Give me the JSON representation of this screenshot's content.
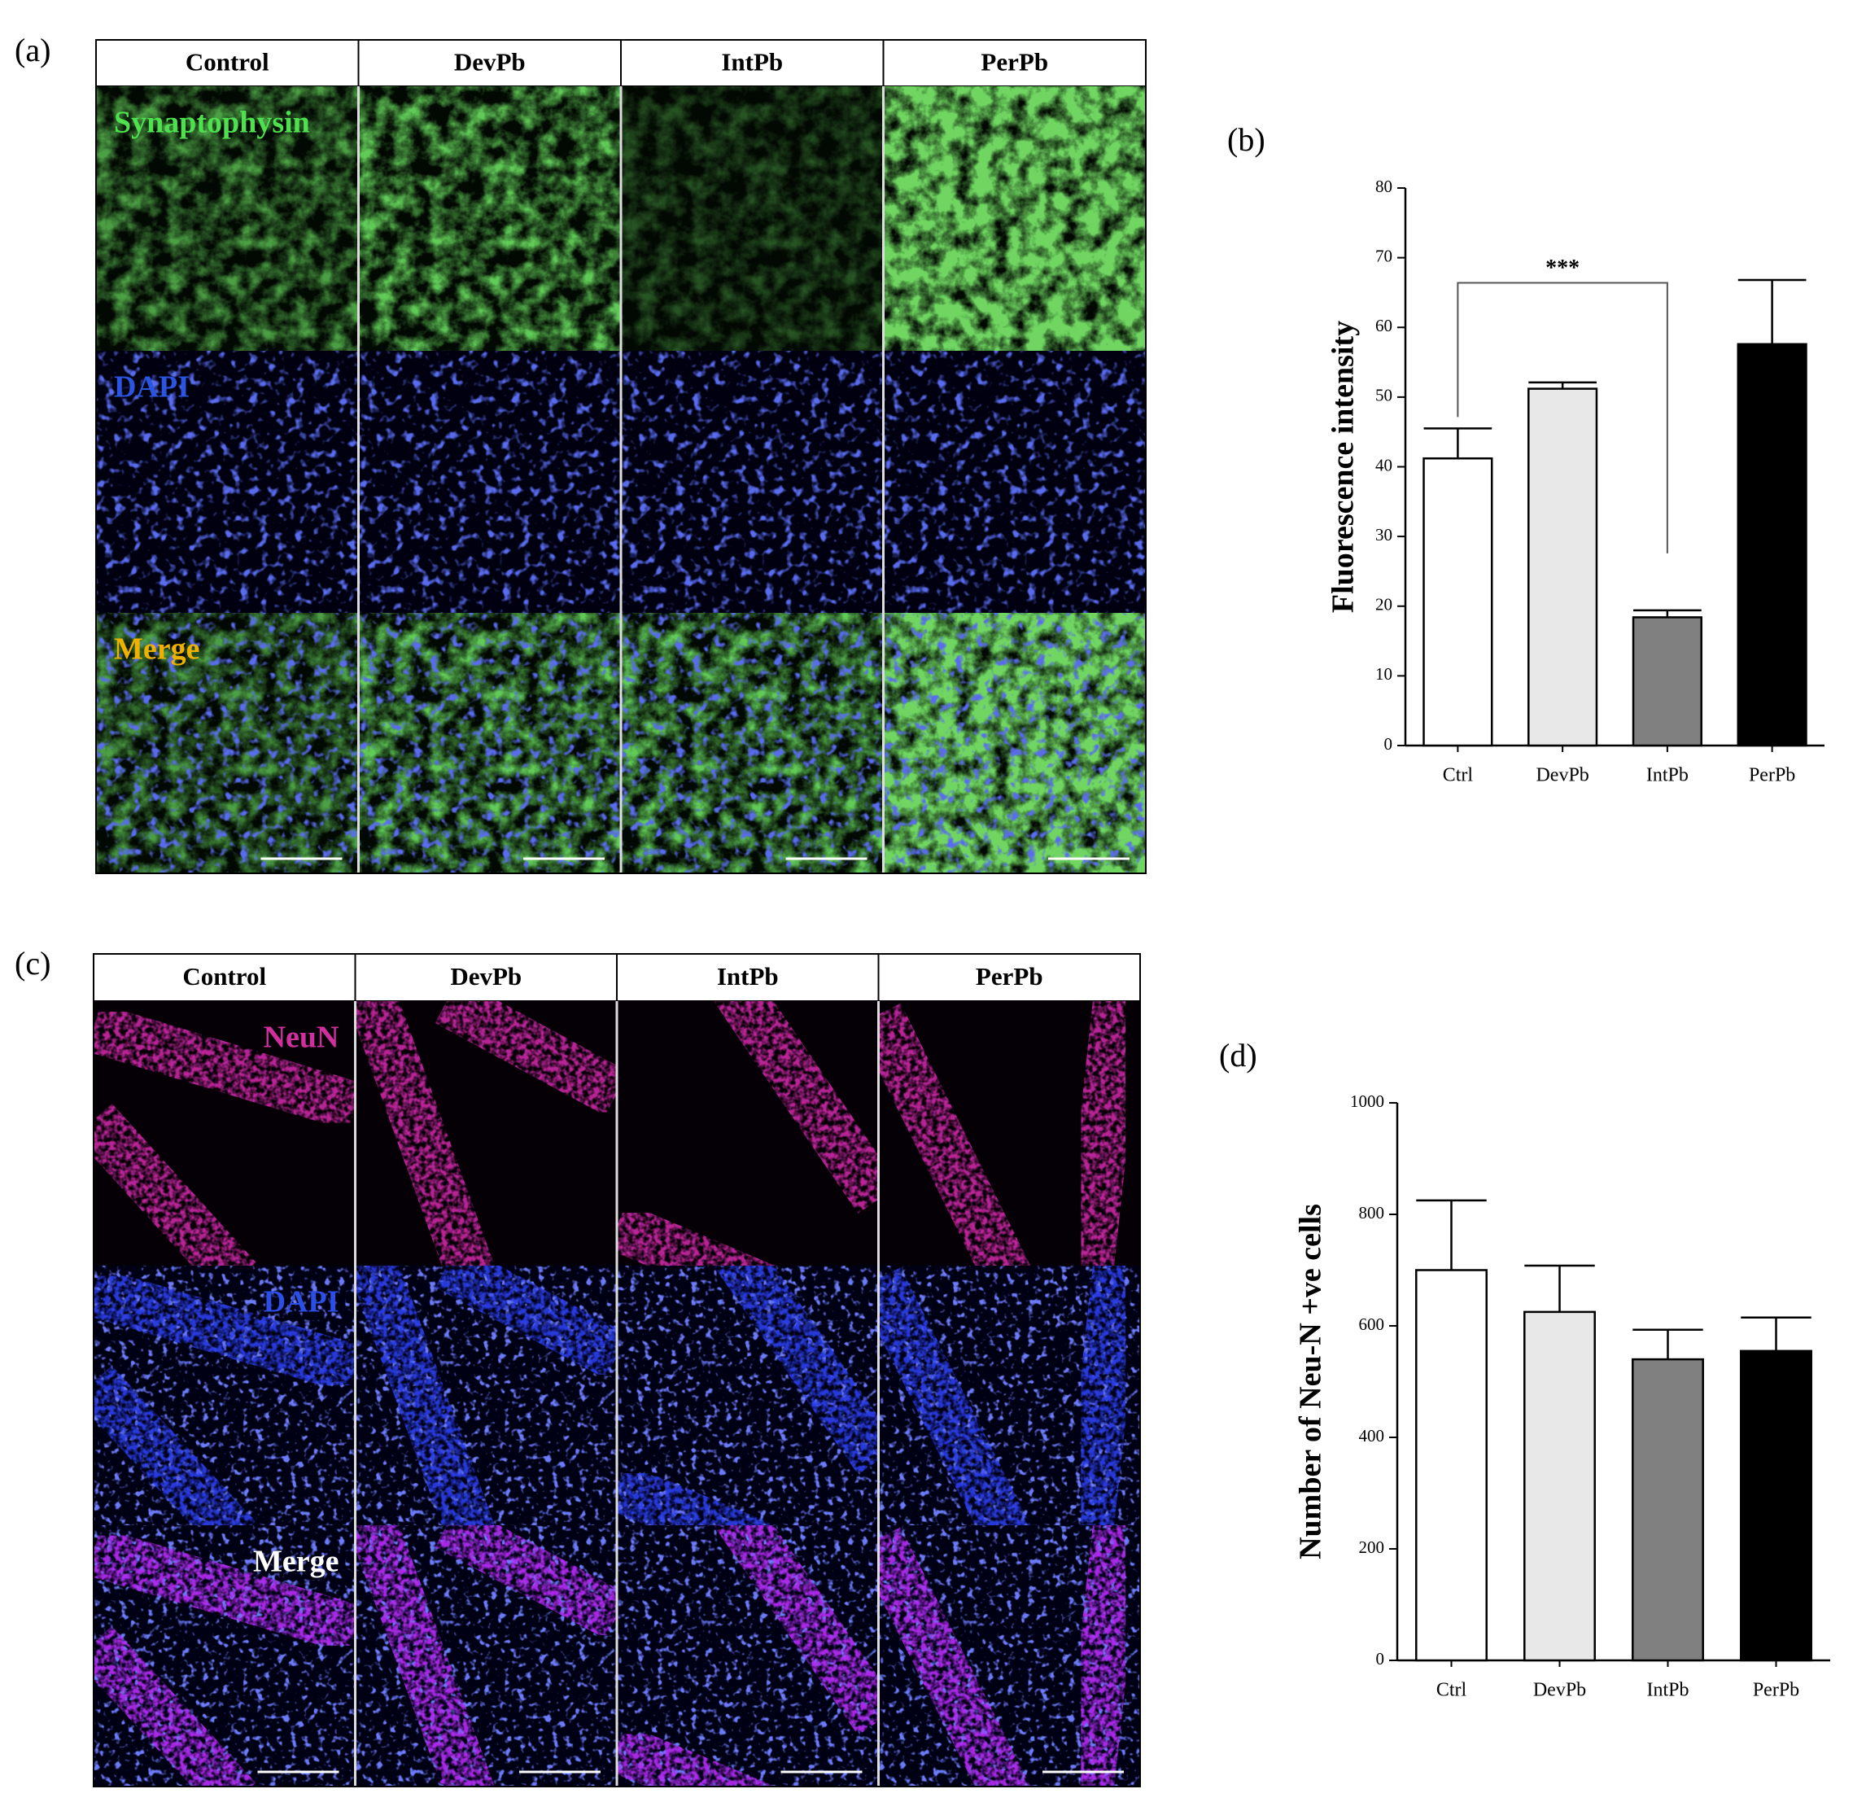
{
  "panel_a": {
    "label": "(a)",
    "columns": [
      "Control",
      "DevPb",
      "IntPb",
      "PerPb"
    ],
    "rows": [
      "Synaptophysin",
      "DAPI",
      "Merge"
    ]
  },
  "panel_c": {
    "label": "(c)",
    "columns": [
      "Control",
      "DevPb",
      "IntPb",
      "PerPb"
    ],
    "rows": [
      "NeuN",
      "DAPI",
      "Merge"
    ]
  },
  "chart_data": [
    {
      "type": "bar",
      "label": "(b)",
      "ylabel": "Fluorescence intensity",
      "categories": [
        "Ctrl",
        "DevPb",
        "IntPb",
        "PerPb"
      ],
      "values": [
        41.2,
        51.2,
        18.4,
        57.6
      ],
      "errors": [
        4.3,
        0.9,
        1.0,
        9.2
      ],
      "colors": [
        "#ffffff",
        "#e8e8e8",
        "#808080",
        "#000000"
      ],
      "ylim": [
        0,
        80
      ],
      "yticks": [
        0,
        10,
        20,
        30,
        40,
        50,
        60,
        70,
        80
      ],
      "annotation": "***"
    },
    {
      "type": "bar",
      "label": "(d)",
      "ylabel": "Number of Neu-N +ve cells",
      "categories": [
        "Ctrl",
        "DevPb",
        "IntPb",
        "PerPb"
      ],
      "values": [
        700,
        625,
        540,
        555
      ],
      "errors": [
        125,
        83,
        53,
        60
      ],
      "colors": [
        "#ffffff",
        "#e8e8e8",
        "#808080",
        "#000000"
      ],
      "ylim": [
        0,
        1000
      ],
      "yticks": [
        0,
        200,
        400,
        600,
        800,
        1000
      ]
    }
  ]
}
